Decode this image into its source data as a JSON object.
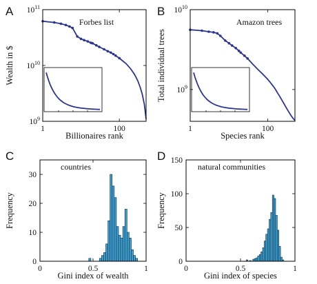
{
  "panels": {
    "A": {
      "letter": "A"
    },
    "B": {
      "letter": "B"
    },
    "C": {
      "letter": "C"
    },
    "D": {
      "letter": "D"
    }
  },
  "chart_data": [
    {
      "id": "A",
      "type": "line",
      "title": "Forbes list",
      "xlabel": "Billionaires rank",
      "ylabel": "Wealth in $",
      "xscale": "log",
      "yscale": "log",
      "xlim": [
        1,
        500
      ],
      "ylim": [
        1000000000.0,
        100000000000.0
      ],
      "xticks": [
        {
          "value": 1,
          "label": "1"
        },
        {
          "value": 100,
          "label": "100"
        }
      ],
      "yticks": [
        {
          "value": 1000000000.0,
          "label": "10",
          "exp": "9"
        },
        {
          "value": 10000000000.0,
          "label": "10",
          "exp": "10"
        },
        {
          "value": 100000000000.0,
          "label": "10",
          "exp": "11"
        }
      ],
      "x": [
        1,
        2,
        3,
        4,
        5,
        6,
        8,
        10,
        12,
        15,
        18,
        20,
        25,
        30,
        40,
        50,
        60,
        70,
        80,
        100,
        120,
        150,
        180,
        200,
        250,
        300,
        350,
        400,
        450,
        500
      ],
      "y": [
        62000000000.0,
        59000000000.0,
        56000000000.0,
        53000000000.0,
        50000000000.0,
        47000000000.0,
        33000000000.0,
        30000000000.0,
        28500000000.0,
        27000000000.0,
        25500000000.0,
        25000000000.0,
        23000000000.0,
        21500000000.0,
        19500000000.0,
        18000000000.0,
        17000000000.0,
        16000000000.0,
        15000000000.0,
        13500000000.0,
        12200000000.0,
        10800000000.0,
        9400000000.0,
        8600000000.0,
        6900000000.0,
        5400000000.0,
        4100000000.0,
        3000000000.0,
        2000000000.0,
        1100000000.0
      ],
      "marker_count": 20,
      "inset": {
        "type": "line",
        "description_shape": "decay"
      }
    },
    {
      "id": "B",
      "type": "line",
      "title": "Amazon trees",
      "xlabel": "Species rank",
      "ylabel": "Total individual trees",
      "xscale": "log",
      "yscale": "log",
      "xlim": [
        1,
        500
      ],
      "ylim": [
        400000000.0,
        10000000000.0
      ],
      "xticks": [
        {
          "value": 1,
          "label": "1"
        },
        {
          "value": 100,
          "label": "100"
        }
      ],
      "yticks": [
        {
          "value": 1000000000.0,
          "label": "10",
          "exp": "9"
        },
        {
          "value": 10000000000.0,
          "label": "10",
          "exp": "10"
        }
      ],
      "x": [
        1,
        2,
        3,
        4,
        5,
        6,
        8,
        10,
        12,
        15,
        18,
        20,
        25,
        30,
        40,
        50,
        60,
        70,
        80,
        100,
        120,
        150,
        180,
        200,
        250,
        300,
        350,
        400,
        450,
        500
      ],
      "y": [
        5600000000.0,
        5450000000.0,
        5300000000.0,
        5200000000.0,
        5050000000.0,
        4700000000.0,
        4100000000.0,
        3800000000.0,
        3550000000.0,
        3300000000.0,
        3050000000.0,
        2900000000.0,
        2650000000.0,
        2450000000.0,
        2100000000.0,
        1880000000.0,
        1720000000.0,
        1600000000.0,
        1500000000.0,
        1340000000.0,
        1200000000.0,
        1040000000.0,
        900000000.0,
        830000000.0,
        690000000.0,
        590000000.0,
        520000000.0,
        470000000.0,
        435000000.0,
        410000000.0
      ],
      "marker_count": 14,
      "inset": {
        "type": "line",
        "description_shape": "decay"
      }
    },
    {
      "id": "C",
      "type": "bar",
      "title": "countries",
      "xlabel": "Gini index of wealth",
      "ylabel": "Frequency",
      "xlim": [
        0,
        1
      ],
      "ylim": [
        0,
        35
      ],
      "xticks": [
        {
          "value": 0,
          "label": "0"
        },
        {
          "value": 0.5,
          "label": "0.5"
        },
        {
          "value": 1,
          "label": "1"
        }
      ],
      "yticks": [
        {
          "value": 0,
          "label": "0"
        },
        {
          "value": 10,
          "label": "10"
        },
        {
          "value": 20,
          "label": "20"
        },
        {
          "value": 30,
          "label": "30"
        }
      ],
      "bin_width": 0.02,
      "bins": [
        {
          "x": 0.47,
          "value": 1
        },
        {
          "x": 0.49,
          "value": 0
        },
        {
          "x": 0.51,
          "value": 0
        },
        {
          "x": 0.53,
          "value": 0
        },
        {
          "x": 0.55,
          "value": 0
        },
        {
          "x": 0.57,
          "value": 1
        },
        {
          "x": 0.59,
          "value": 2
        },
        {
          "x": 0.61,
          "value": 3
        },
        {
          "x": 0.63,
          "value": 6
        },
        {
          "x": 0.65,
          "value": 14
        },
        {
          "x": 0.67,
          "value": 30
        },
        {
          "x": 0.69,
          "value": 26
        },
        {
          "x": 0.71,
          "value": 22
        },
        {
          "x": 0.73,
          "value": 12
        },
        {
          "x": 0.75,
          "value": 9
        },
        {
          "x": 0.77,
          "value": 8
        },
        {
          "x": 0.79,
          "value": 12
        },
        {
          "x": 0.81,
          "value": 18
        },
        {
          "x": 0.83,
          "value": 10
        },
        {
          "x": 0.85,
          "value": 8
        },
        {
          "x": 0.87,
          "value": 4
        },
        {
          "x": 0.89,
          "value": 2
        },
        {
          "x": 0.91,
          "value": 1
        }
      ]
    },
    {
      "id": "D",
      "type": "bar",
      "title": "natural communities",
      "xlabel": "Gini index of species",
      "ylabel": "Frequency",
      "xlim": [
        0,
        1
      ],
      "ylim": [
        0,
        150
      ],
      "xticks": [
        {
          "value": 0,
          "label": "0"
        },
        {
          "value": 0.5,
          "label": "0.5"
        },
        {
          "value": 1,
          "label": "1"
        }
      ],
      "yticks": [
        {
          "value": 0,
          "label": "0"
        },
        {
          "value": 50,
          "label": "50"
        },
        {
          "value": 100,
          "label": "100"
        },
        {
          "value": 150,
          "label": "150"
        }
      ],
      "bin_width": 0.015,
      "bins": [
        {
          "x": 0.56,
          "value": 2
        },
        {
          "x": 0.575,
          "value": 0
        },
        {
          "x": 0.59,
          "value": 1
        },
        {
          "x": 0.605,
          "value": 0
        },
        {
          "x": 0.62,
          "value": 3
        },
        {
          "x": 0.635,
          "value": 4
        },
        {
          "x": 0.65,
          "value": 5
        },
        {
          "x": 0.665,
          "value": 8
        },
        {
          "x": 0.68,
          "value": 10
        },
        {
          "x": 0.695,
          "value": 14
        },
        {
          "x": 0.71,
          "value": 20
        },
        {
          "x": 0.725,
          "value": 30
        },
        {
          "x": 0.74,
          "value": 40
        },
        {
          "x": 0.755,
          "value": 48
        },
        {
          "x": 0.77,
          "value": 62
        },
        {
          "x": 0.785,
          "value": 72
        },
        {
          "x": 0.8,
          "value": 98
        },
        {
          "x": 0.815,
          "value": 93
        },
        {
          "x": 0.83,
          "value": 68
        },
        {
          "x": 0.845,
          "value": 46
        },
        {
          "x": 0.86,
          "value": 22
        },
        {
          "x": 0.875,
          "value": 6
        },
        {
          "x": 0.89,
          "value": 2
        }
      ]
    }
  ]
}
